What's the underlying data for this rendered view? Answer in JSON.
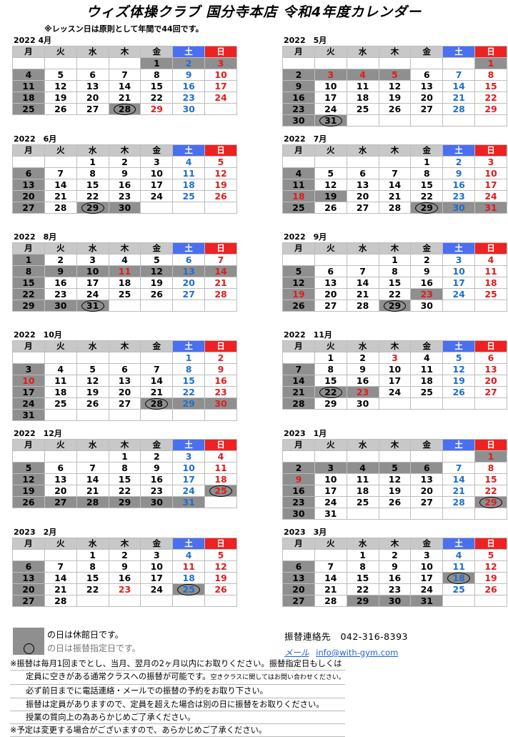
{
  "header": {
    "title": "ウィズ体操クラブ 国分寺本店 令和4年度カレンダー",
    "subtitle": "※レッスン日は原則として年間で44回です。"
  },
  "weekdays": [
    "月",
    "火",
    "水",
    "木",
    "金",
    "土",
    "日"
  ],
  "months": [
    {
      "title": "2022 4月",
      "first_weekday": 4,
      "days": 30,
      "closed": [
        1,
        2,
        3,
        4,
        11,
        18,
        25,
        28
      ],
      "red": [
        10,
        17,
        24,
        29
      ],
      "blue": [
        2,
        9,
        16,
        23,
        30
      ],
      "circled": [
        28
      ]
    },
    {
      "title": "2022　5月",
      "first_weekday": 6,
      "days": 31,
      "closed": [
        1,
        2,
        3,
        4,
        5,
        9,
        16,
        23,
        30,
        31
      ],
      "red": [
        3,
        4,
        5
      ],
      "blue": [],
      "circled": [
        31
      ]
    },
    {
      "title": "2022　6月",
      "first_weekday": 2,
      "days": 30,
      "closed": [
        6,
        13,
        20,
        27,
        29,
        30
      ],
      "red": [],
      "blue": [],
      "circled": [
        29
      ]
    },
    {
      "title": "2022　7月",
      "first_weekday": 4,
      "days": 31,
      "closed": [
        4,
        11,
        18,
        19,
        25,
        29,
        30,
        31
      ],
      "red": [
        18
      ],
      "blue": [],
      "circled": [
        29
      ]
    },
    {
      "title": "2022　8月",
      "first_weekday": 0,
      "days": 31,
      "closed": [
        1,
        8,
        9,
        10,
        11,
        12,
        13,
        14,
        15,
        22,
        29,
        30,
        31
      ],
      "red": [
        11
      ],
      "blue": [],
      "circled": [
        31
      ]
    },
    {
      "title": "2022　9月",
      "first_weekday": 3,
      "days": 30,
      "closed": [
        5,
        12,
        19,
        23,
        26,
        29
      ],
      "red": [
        19,
        23
      ],
      "blue": [],
      "circled": [
        29
      ]
    },
    {
      "title": "2022　10月",
      "first_weekday": 5,
      "days": 31,
      "closed": [
        3,
        10,
        17,
        24,
        28,
        29,
        30,
        31
      ],
      "red": [
        10
      ],
      "blue": [],
      "circled": [
        28
      ]
    },
    {
      "title": "2022　11月",
      "first_weekday": 1,
      "days": 30,
      "closed": [
        7,
        14,
        21,
        22,
        23,
        28
      ],
      "red": [
        3,
        23
      ],
      "blue": [],
      "circled": [
        22
      ]
    },
    {
      "title": "2022　12月",
      "first_weekday": 3,
      "days": 31,
      "closed": [
        5,
        12,
        19,
        25,
        26,
        27,
        28,
        29,
        30,
        31
      ],
      "red": [],
      "blue": [],
      "circled": [
        25
      ]
    },
    {
      "title": "2023　1月",
      "first_weekday": 6,
      "days": 31,
      "closed": [
        1,
        2,
        3,
        4,
        5,
        6,
        9,
        16,
        23,
        29,
        30
      ],
      "red": [
        9
      ],
      "blue": [],
      "circled": [
        29
      ]
    },
    {
      "title": "2023　2月",
      "first_weekday": 2,
      "days": 28,
      "closed": [
        6,
        13,
        20,
        25,
        27
      ],
      "red": [
        11,
        23
      ],
      "blue": [],
      "circled": [
        25
      ]
    },
    {
      "title": "2023　3月",
      "first_weekday": 2,
      "days": 31,
      "closed": [
        6,
        13,
        18,
        20,
        27,
        29,
        30,
        31
      ],
      "red": [],
      "blue": [],
      "circled": [
        18
      ]
    }
  ],
  "legend": {
    "closed_text": "の日は休館日です。",
    "circled_text": "の日は振替指定日です。"
  },
  "contact": {
    "phone_label": "振替連絡先",
    "phone": "042-316-8393",
    "mail_label": "メール",
    "mail": "info@with-gym.com"
  },
  "notes": {
    "n1": "※振替は毎月1回までとし、当月、翌月の2ヶ月以内にお取りください。振替指定日もしくは",
    "n2": "定員に空きがある通常クラスへの振替が可能です。",
    "n2_small": "空きクラスに関してはお問い合わせください。",
    "n3": "必ず前日までに電話連絡・メールでの振替の予約をお取り下さい。",
    "n4": "振替は定員がありますので、定員を超えた場合は別の日に振替をお取りください。",
    "n5": "授業の質向上の為あらかじめご了承ください。",
    "n6": "※予定は変更する場合がございますので、あらかじめご了承ください。"
  },
  "colors": {
    "saturday": "#1d6fcf",
    "sunday": "#e21b1b",
    "closed": "#8f8f8f"
  }
}
